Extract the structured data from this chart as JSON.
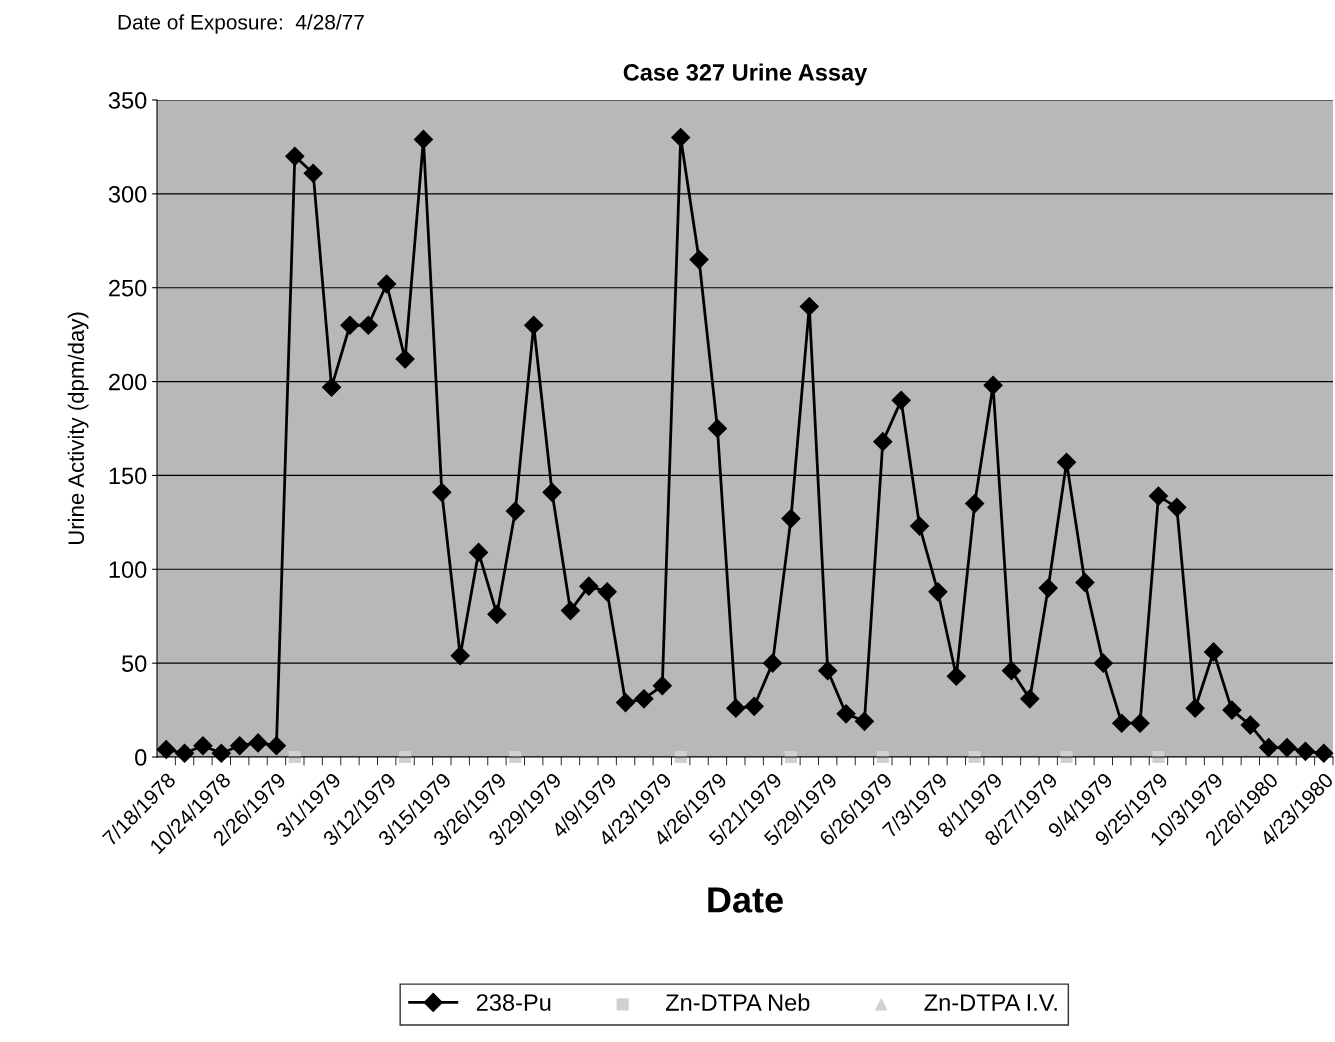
{
  "chart_data": {
    "type": "line",
    "title": "Case 327 Urine Assay",
    "xlabel": "Date",
    "ylabel": "Urine Activity (dpm/day)",
    "annotations": [
      "Date of Exposure:  4/28/77"
    ],
    "categories": [
      "7/18/1978",
      null,
      null,
      "10/24/1978",
      null,
      null,
      "2/26/1979",
      null,
      null,
      "3/1/1979",
      null,
      null,
      "3/12/1979",
      null,
      null,
      "3/15/1979",
      null,
      null,
      "3/26/1979",
      null,
      null,
      "3/29/1979",
      null,
      null,
      "4/9/1979",
      null,
      null,
      "4/23/1979",
      null,
      null,
      "4/26/1979",
      null,
      null,
      "5/21/1979",
      null,
      null,
      "5/29/1979",
      null,
      null,
      "6/26/1979",
      null,
      null,
      "7/3/1979",
      null,
      null,
      "8/1/1979",
      null,
      null,
      "8/27/1979",
      null,
      null,
      "9/4/1979",
      null,
      null,
      "9/25/1979",
      null,
      null,
      "10/3/1979",
      null,
      null,
      "2/26/1980",
      null,
      null,
      "4/23/1980"
    ],
    "series": [
      {
        "name": "238-Pu",
        "color": "#000000",
        "marker": "diamond",
        "line_style": "solid",
        "values": [
          4,
          2,
          6,
          2,
          6,
          7.5,
          6,
          320,
          311,
          197,
          230,
          230,
          252,
          212,
          329,
          141,
          54,
          109,
          76,
          131,
          230,
          141,
          78,
          91,
          88,
          29,
          31,
          38,
          330,
          265,
          175,
          26,
          27,
          50,
          127,
          240,
          46,
          23,
          19,
          168,
          190,
          123,
          88,
          43,
          135,
          198,
          46,
          31,
          90,
          157,
          93,
          50,
          18,
          18,
          139,
          133,
          26,
          56,
          25,
          17,
          5,
          5,
          3,
          2
        ]
      },
      {
        "name": "Zn-DTPA Neb",
        "color": "#d0d0d0",
        "type": "scatter",
        "marker": "square",
        "values": [
          null,
          null,
          null,
          null,
          null,
          null,
          null,
          0,
          null,
          null,
          null,
          null,
          null,
          0,
          null,
          null,
          null,
          null,
          null,
          0,
          null,
          null,
          null,
          null,
          null,
          null,
          null,
          null,
          0,
          null,
          null,
          null,
          null,
          null,
          0,
          null,
          null,
          null,
          null,
          0,
          null,
          null,
          null,
          null,
          0,
          null,
          null,
          null,
          null,
          0,
          null,
          null,
          null,
          null,
          0,
          null,
          null,
          null,
          null,
          null,
          null,
          null,
          null,
          null
        ]
      },
      {
        "name": "Zn-DTPA I.V.",
        "color": "#d0d0d0",
        "type": "scatter",
        "marker": "triangle",
        "values": [
          null,
          null,
          null,
          null,
          null,
          null,
          null,
          null,
          null,
          null,
          null,
          null,
          null,
          null,
          null,
          null,
          null,
          null,
          null,
          null,
          null,
          null,
          null,
          null,
          null,
          null,
          null,
          null,
          null,
          null,
          null,
          null,
          null,
          null,
          null,
          null,
          null,
          null,
          null,
          null,
          null,
          null,
          null,
          null,
          null,
          null,
          null,
          null,
          null,
          null,
          null,
          null,
          null,
          null,
          null,
          null,
          null,
          null,
          null,
          null,
          null,
          null,
          null,
          null
        ]
      }
    ],
    "ylim": [
      0,
      350
    ],
    "yticks": [
      0,
      50,
      100,
      150,
      200,
      250,
      300,
      350
    ],
    "grid": "y",
    "legend": "bottom"
  }
}
